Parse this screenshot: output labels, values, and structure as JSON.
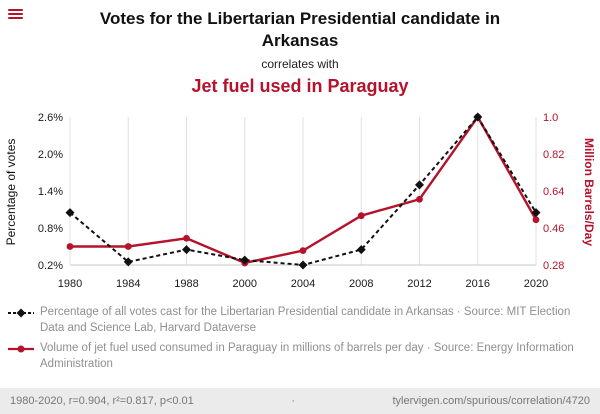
{
  "header": {
    "title": "Votes for the Libertarian Presidential candidate in Arkansas",
    "connector": "correlates with",
    "subtitle": "Jet fuel used in Paraguay"
  },
  "colors": {
    "accent_red": "#b5122b",
    "series_black": "#111111",
    "gridline": "#e0e0e0",
    "footer_bg": "#ebebeb"
  },
  "chart_data": {
    "type": "line",
    "categories": [
      "1980",
      "1984",
      "1988",
      "2000",
      "2004",
      "2008",
      "2012",
      "2016",
      "2020"
    ],
    "series": [
      {
        "name": "Libertarian votes in Arkansas",
        "axis": "left",
        "color": "#111111",
        "dash": true,
        "marker": "diamond",
        "values": [
          1.05,
          0.25,
          0.45,
          0.28,
          0.2,
          0.45,
          1.5,
          2.6,
          1.05
        ]
      },
      {
        "name": "Jet fuel used in Paraguay",
        "axis": "right",
        "color": "#b5122b",
        "dash": false,
        "marker": "circle",
        "values": [
          0.37,
          0.37,
          0.41,
          0.29,
          0.35,
          0.52,
          0.6,
          1.0,
          0.5
        ]
      }
    ],
    "left_axis": {
      "label": "Percentage of votes",
      "ticks": [
        "2.6%",
        "2.0%",
        "1.4%",
        "0.8%",
        "0.2%"
      ],
      "min": 0.2,
      "max": 2.6
    },
    "right_axis": {
      "label": "Million Barrels/Day",
      "ticks": [
        "1.0",
        "0.82",
        "0.64",
        "0.46",
        "0.28"
      ],
      "min": 0.28,
      "max": 1.0
    },
    "grid": "vertical",
    "legend_position": "below"
  },
  "legend": [
    {
      "text": "Percentage of all votes cast for the Libertarian Presidential candidate in Arkansas · Source: MIT Election Data and Science Lab, Harvard Dataverse"
    },
    {
      "text": "Volume of jet fuel used consumed in Paraguay in millions of barrels per day · Source: Energy Information Administration"
    }
  ],
  "footer": {
    "stats": "1980-2020, r=0.904, r²=0.817, p<0.01",
    "separator": "·",
    "site": "tylervigen.com/spurious/correlation/4720"
  }
}
